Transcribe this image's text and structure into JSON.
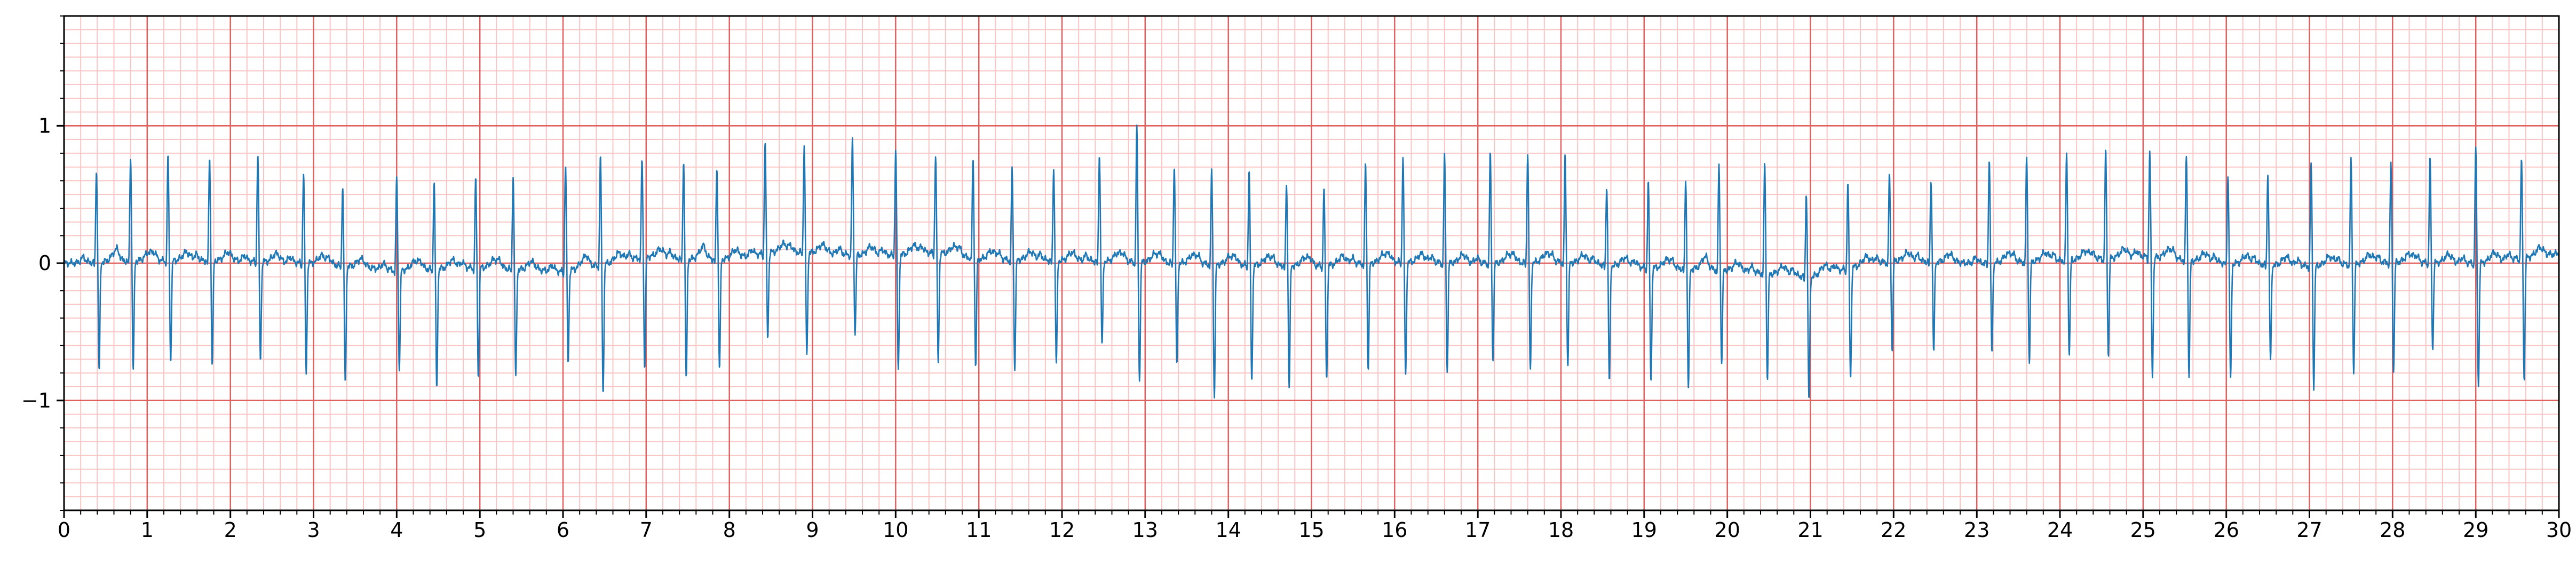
{
  "chart_data": {
    "type": "line",
    "title": "",
    "xlabel": "",
    "ylabel": "",
    "xlim": [
      0,
      30
    ],
    "ylim": [
      -1.8,
      1.8
    ],
    "x_ticks": [
      0,
      1,
      2,
      3,
      4,
      5,
      6,
      7,
      8,
      9,
      10,
      11,
      12,
      13,
      14,
      15,
      16,
      17,
      18,
      19,
      20,
      21,
      22,
      23,
      24,
      25,
      26,
      27,
      28,
      29,
      30
    ],
    "x_tick_labels": [
      "0",
      "1",
      "2",
      "3",
      "4",
      "5",
      "6",
      "7",
      "8",
      "9",
      "10",
      "11",
      "12",
      "13",
      "14",
      "15",
      "16",
      "17",
      "18",
      "19",
      "20",
      "21",
      "22",
      "23",
      "24",
      "25",
      "26",
      "27",
      "28",
      "29",
      "30"
    ],
    "y_ticks": [
      -1,
      0,
      1
    ],
    "y_tick_labels": [
      "−1",
      "0",
      "1"
    ],
    "grid": {
      "major": {
        "x_step": 1,
        "y_step": 1,
        "color": "#e06060"
      },
      "minor": {
        "x_step": 0.2,
        "y_step": 0.1,
        "color": "#f8c4c4"
      }
    },
    "series": [
      {
        "color": "#1f77b4",
        "beat_times": [
          0.39,
          0.8,
          1.25,
          1.75,
          2.33,
          2.88,
          3.35,
          4.0,
          4.45,
          4.95,
          5.4,
          6.03,
          6.45,
          6.95,
          7.45,
          7.85,
          8.43,
          8.9,
          9.48,
          10.0,
          10.48,
          10.93,
          11.4,
          11.9,
          12.45,
          12.9,
          13.35,
          13.8,
          14.25,
          14.7,
          15.15,
          15.65,
          16.1,
          16.6,
          17.15,
          17.6,
          18.05,
          18.55,
          19.05,
          19.5,
          19.9,
          20.45,
          20.95,
          21.45,
          21.95,
          22.45,
          23.15,
          23.6,
          24.08,
          24.55,
          25.08,
          25.52,
          26.02,
          26.5,
          27.02,
          27.5,
          27.98,
          28.45,
          29.0,
          29.55
        ],
        "r_peaks": [
          0.68,
          0.76,
          0.76,
          0.76,
          0.79,
          0.66,
          0.57,
          0.67,
          0.63,
          0.64,
          0.68,
          0.78,
          0.78,
          0.71,
          0.72,
          0.67,
          0.82,
          0.78,
          0.84,
          0.76,
          0.71,
          0.72,
          0.66,
          0.68,
          0.79,
          0.97,
          0.71,
          0.68,
          0.69,
          0.59,
          0.55,
          0.72,
          0.76,
          0.77,
          0.79,
          0.8,
          0.78,
          0.58,
          0.63,
          0.65,
          0.76,
          0.8,
          0.62,
          0.62,
          0.62,
          0.6,
          0.77,
          0.75,
          0.77,
          0.78,
          0.77,
          0.77,
          0.65,
          0.68,
          0.76,
          0.76,
          0.72,
          0.76,
          0.83,
          0.71
        ],
        "s_troughs": [
          -0.8,
          -0.8,
          -0.73,
          -0.76,
          -0.72,
          -0.8,
          -0.87,
          -0.72,
          -0.89,
          -0.8,
          -0.8,
          -0.67,
          -0.95,
          -0.81,
          -0.88,
          -0.8,
          -0.62,
          -0.77,
          -0.58,
          -0.86,
          -0.8,
          -0.8,
          -0.8,
          -0.76,
          -0.62,
          -0.87,
          -0.76,
          -0.97,
          -0.87,
          -0.89,
          -0.84,
          -0.78,
          -0.84,
          -0.8,
          -0.72,
          -0.8,
          -0.76,
          -0.86,
          -0.85,
          -0.87,
          -0.68,
          -0.78,
          -0.91,
          -0.82,
          -0.66,
          -0.66,
          -0.67,
          -0.74,
          -0.7,
          -0.72,
          -0.88,
          -0.84,
          -0.85,
          -0.7,
          -0.88,
          -0.8,
          -0.8,
          -0.64,
          -0.9,
          -0.9
        ],
        "baseline": [
          [
            0,
            0.0
          ],
          [
            1,
            0.02
          ],
          [
            2,
            0.02
          ],
          [
            3,
            0.0
          ],
          [
            4,
            -0.05
          ],
          [
            5,
            -0.03
          ],
          [
            6,
            -0.06
          ],
          [
            7,
            0.05
          ],
          [
            7.5,
            0.03
          ],
          [
            8,
            0.03
          ],
          [
            8.5,
            0.08
          ],
          [
            9,
            0.08
          ],
          [
            9.5,
            0.06
          ],
          [
            10,
            0.06
          ],
          [
            10.5,
            0.08
          ],
          [
            11,
            0.03
          ],
          [
            12,
            0.02
          ],
          [
            13,
            0.01
          ],
          [
            14,
            -0.01
          ],
          [
            15,
            -0.02
          ],
          [
            16,
            0.01
          ],
          [
            17,
            0.0
          ],
          [
            18,
            0.01
          ],
          [
            19,
            -0.03
          ],
          [
            20,
            -0.05
          ],
          [
            21,
            -0.1
          ],
          [
            21.5,
            -0.03
          ],
          [
            22,
            0.02
          ],
          [
            23,
            0.0
          ],
          [
            24,
            0.02
          ],
          [
            25,
            0.05
          ],
          [
            26,
            0.0
          ],
          [
            27,
            -0.02
          ],
          [
            28,
            0.01
          ],
          [
            29,
            0.0
          ],
          [
            30,
            0.07
          ]
        ]
      }
    ]
  }
}
